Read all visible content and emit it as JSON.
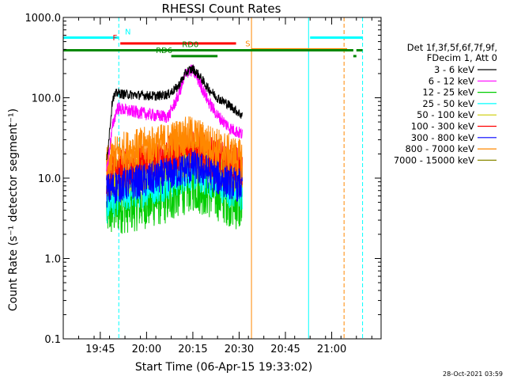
{
  "chart_data": {
    "type": "line",
    "title": "RHESSI Count Rates",
    "xlabel": "Start Time (06-Apr-15 19:33:02)",
    "ylabel": "Count Rate (s⁻¹ detector segment⁻¹)",
    "yscale": "log",
    "ylim": [
      0.1,
      1000
    ],
    "xlim_minutes": [
      0,
      103
    ],
    "x_origin": "19:33:02",
    "y_ticks": [
      {
        "value": 0.1,
        "label": "0.1"
      },
      {
        "value": 1,
        "label": "1.0"
      },
      {
        "value": 10,
        "label": "10.0"
      },
      {
        "value": 100,
        "label": "100.0"
      },
      {
        "value": 1000,
        "label": "1000.0"
      }
    ],
    "x_ticks": [
      {
        "minute": 12,
        "label": "19:45"
      },
      {
        "minute": 27,
        "label": "20:00"
      },
      {
        "minute": 42,
        "label": "20:15"
      },
      {
        "minute": 57,
        "label": "20:30"
      },
      {
        "minute": 72,
        "label": "20:45"
      },
      {
        "minute": 87,
        "label": "21:00"
      }
    ],
    "legend_header": [
      "Det 1f,3f,5f,6f,7f,9f,",
      "FDecim 1, Att 0"
    ],
    "series": [
      {
        "name": "3 - 6 keV",
        "color": "#000000",
        "x": [
          14,
          16,
          17.5,
          20,
          25,
          30,
          34,
          37,
          40,
          42,
          44,
          47,
          50,
          54,
          58
        ],
        "y": [
          15,
          100,
          115,
          110,
          108,
          105,
          110,
          135,
          210,
          230,
          190,
          130,
          100,
          80,
          60
        ]
      },
      {
        "name": "6 - 12 keV",
        "color": "#ff00ff",
        "x": [
          14,
          16,
          17.5,
          20,
          25,
          30,
          34,
          37,
          40,
          42,
          44,
          47,
          50,
          54,
          58
        ],
        "y": [
          12,
          45,
          75,
          70,
          65,
          60,
          58,
          100,
          210,
          220,
          160,
          90,
          60,
          42,
          35
        ]
      },
      {
        "name": "12 - 25 keV",
        "color": "#00cc00",
        "x": [
          14,
          16,
          17.5,
          20,
          25,
          30,
          34,
          37,
          40,
          42,
          44,
          47,
          50,
          54,
          58
        ],
        "y": [
          4,
          4,
          4.5,
          4.5,
          5,
          5.5,
          6,
          7,
          8,
          8.5,
          8,
          7,
          6.5,
          5.5,
          4.5
        ]
      },
      {
        "name": "25 - 50 keV",
        "color": "#00ffff",
        "x": [
          14,
          16,
          17.5,
          20,
          25,
          30,
          34,
          37,
          40,
          42,
          44,
          47,
          50,
          54,
          58
        ],
        "y": [
          5,
          6,
          6.5,
          7,
          8,
          9,
          10,
          11,
          13,
          13,
          12,
          11,
          10,
          8,
          7
        ]
      },
      {
        "name": "50 - 100 keV",
        "color": "#cccc00",
        "x": [
          14,
          16,
          17.5,
          20,
          25,
          30,
          34,
          37,
          40,
          42,
          44,
          47,
          50,
          54,
          58
        ],
        "y": [
          9,
          10,
          10,
          11,
          12,
          14,
          15,
          17,
          18,
          19,
          17,
          15,
          13,
          12,
          11
        ]
      },
      {
        "name": "100 - 300 keV",
        "color": "#ff0000",
        "x": [
          14,
          16,
          17.5,
          20,
          25,
          30,
          34,
          37,
          40,
          42,
          44,
          47,
          50,
          54,
          58
        ],
        "y": [
          10,
          13,
          13,
          14,
          15,
          17,
          19,
          21,
          23,
          24,
          22,
          19,
          17,
          15,
          14
        ]
      },
      {
        "name": "300 - 800 keV",
        "color": "#0000ff",
        "x": [
          14,
          16,
          17.5,
          20,
          25,
          30,
          34,
          37,
          40,
          42,
          44,
          47,
          50,
          54,
          58
        ],
        "y": [
          7,
          7.5,
          8,
          8.5,
          9,
          10,
          11,
          12,
          13,
          14,
          13,
          12,
          10,
          9,
          8
        ]
      },
      {
        "name": "800 - 7000 keV",
        "color": "#ff8800",
        "x": [
          14,
          16,
          17.5,
          20,
          25,
          30,
          34,
          37,
          40,
          42,
          44,
          47,
          50,
          54,
          58
        ],
        "y": [
          14,
          18,
          20,
          22,
          24,
          26,
          28,
          31,
          33,
          34,
          31,
          27,
          24,
          20,
          17
        ]
      },
      {
        "name": "7000 - 15000 keV",
        "color": "#888800",
        "x": [],
        "y": []
      }
    ],
    "flags": [
      {
        "label": "N",
        "color": "#00ffff",
        "segments": [
          [
            0,
            18
          ],
          [
            80,
            97
          ]
        ],
        "level": 560,
        "label_minute": 20
      },
      {
        "label": "S",
        "color": "#ff8800",
        "segments": [
          [
            61,
            92
          ]
        ],
        "level": 400,
        "label_minute": 59
      },
      {
        "label": "F",
        "color": "#ff0000",
        "segments": [
          [
            18.5,
            56
          ]
        ],
        "level": 475,
        "label_minute": 16
      },
      {
        "label": "RD0",
        "color": "#008800",
        "segments": [
          [
            0,
            94
          ],
          [
            95,
            97
          ]
        ],
        "level": 390,
        "label_minute": 38.5
      },
      {
        "label": "RD6",
        "color": "#008800",
        "segments": [
          [
            35,
            50
          ],
          [
            94,
            95
          ]
        ],
        "level": 330,
        "label_minute": 30
      }
    ],
    "vlines": [
      {
        "minute": 0,
        "color": "#00ffff",
        "style": "solid"
      },
      {
        "minute": 18,
        "color": "#00ffff",
        "style": "dashed"
      },
      {
        "minute": 61,
        "color": "#ff8800",
        "style": "solid"
      },
      {
        "minute": 79.5,
        "color": "#00ffff",
        "style": "solid"
      },
      {
        "minute": 91,
        "color": "#ff8800",
        "style": "dashed"
      },
      {
        "minute": 97,
        "color": "#00ffff",
        "style": "dashed"
      }
    ],
    "footer_timestamp": "28-Oct-2021 03:59"
  }
}
